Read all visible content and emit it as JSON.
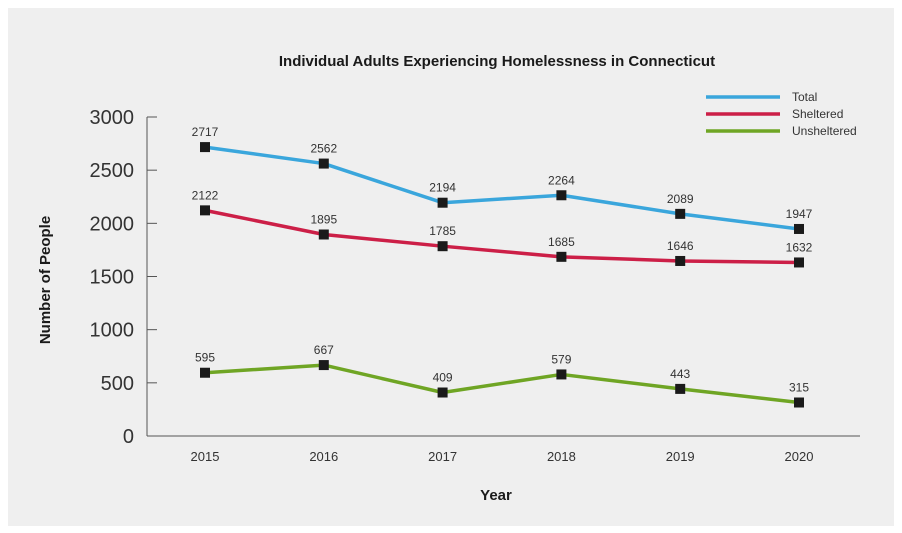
{
  "chart_data": {
    "type": "line",
    "title": "Individual Adults Experiencing Homelessness in Connecticut",
    "xlabel": "Year",
    "ylabel": "Number of People",
    "categories": [
      "2015",
      "2016",
      "2017",
      "2018",
      "2019",
      "2020"
    ],
    "ylim": [
      0,
      3000
    ],
    "yticks": [
      "0",
      "500",
      "1000",
      "1500",
      "2000",
      "2500",
      "3000"
    ],
    "grid": false,
    "legend_position": "top-right",
    "series": [
      {
        "name": "Total",
        "color": "#3aa6dc",
        "values": [
          2717,
          2562,
          2194,
          2264,
          2089,
          1947
        ]
      },
      {
        "name": "Sheltered",
        "color": "#cc1f47",
        "values": [
          2122,
          1895,
          1785,
          1685,
          1646,
          1632
        ]
      },
      {
        "name": "Unsheltered",
        "color": "#6fa524",
        "values": [
          595,
          667,
          409,
          579,
          443,
          315
        ]
      }
    ],
    "marker_color": "#1a1a1a"
  }
}
